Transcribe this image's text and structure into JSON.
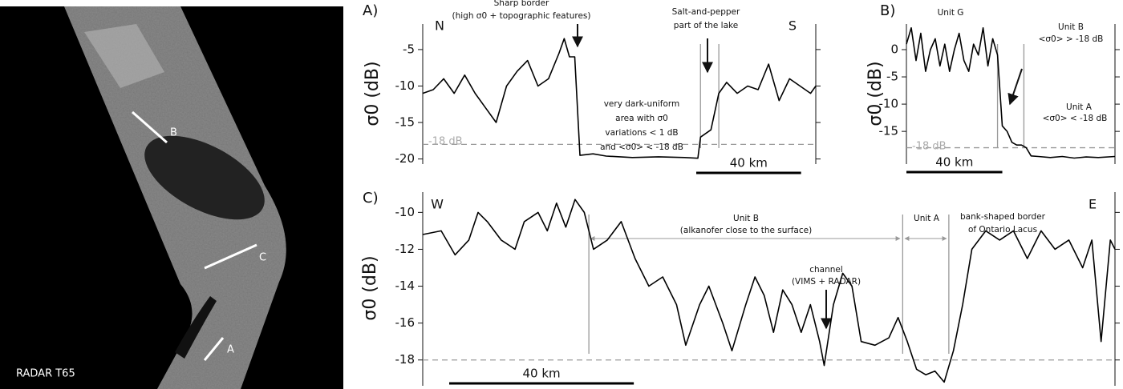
{
  "image": {
    "caption": "RADAR T65",
    "profile_labels": [
      "B",
      "C",
      "A"
    ]
  },
  "chart_data": [
    {
      "type": "line",
      "panel": "A)",
      "y_label": "σ0 (dB)",
      "color": "#000000",
      "x": [
        0,
        4,
        8,
        12,
        16,
        20,
        24,
        28,
        32,
        36,
        40,
        44,
        48,
        52,
        54,
        56,
        58,
        60,
        65,
        70,
        80,
        90,
        100,
        105,
        106,
        110,
        113,
        116,
        120,
        124,
        128,
        132,
        136,
        140,
        144,
        148,
        150
      ],
      "values": [
        -11,
        -10.5,
        -9,
        -11,
        -8.5,
        -11,
        -13,
        -15,
        -10,
        -8,
        -6.5,
        -10,
        -9,
        -5.5,
        -3.5,
        -6,
        -6,
        -19.5,
        -19.3,
        -19.6,
        -19.8,
        -19.7,
        -19.8,
        -19.9,
        -17,
        -16,
        -11,
        -9.5,
        -11,
        -10,
        -10.5,
        -7,
        -12,
        -9,
        -10,
        -11,
        -10
      ],
      "xlim": [
        0,
        150
      ],
      "ylim": [
        -20.7,
        -1.5
      ],
      "yticks": [
        -5,
        -10,
        -15,
        -20
      ],
      "hlines": [
        {
          "value": -18,
          "label": "-18 dB"
        }
      ],
      "vlines": [
        106,
        113
      ],
      "scale_bar": {
        "length": 40,
        "label": "40 km"
      },
      "annotations": [
        "Sharp border",
        "(high σ0 + topographic features)",
        "Salt-and-pepper",
        "part of the lake",
        "very dark-uniform",
        "area with σ0",
        "variations < 1 dB",
        "and <σ0> < -18 dB",
        "N",
        "S"
      ]
    },
    {
      "type": "line",
      "panel": "B)",
      "y_label": "σ0 (dB)",
      "color": "#000000",
      "x": [
        0,
        2,
        4,
        6,
        8,
        10,
        12,
        14,
        16,
        18,
        20,
        22,
        24,
        26,
        28,
        30,
        32,
        34,
        36,
        38,
        40,
        42,
        44,
        46,
        48,
        50,
        52,
        55,
        60,
        65,
        70,
        75,
        80,
        87
      ],
      "values": [
        1,
        4,
        -2,
        3,
        -4,
        0,
        2,
        -3,
        1,
        -4,
        0,
        3,
        -2,
        -4,
        1,
        -1,
        4,
        -3,
        2,
        -1,
        -14,
        -15,
        -17,
        -17.5,
        -17.5,
        -18,
        -19.5,
        -19.6,
        -19.8,
        -19.6,
        -19.9,
        -19.7,
        -19.8,
        -19.6
      ],
      "xlim": [
        0,
        87
      ],
      "ylim": [
        -21,
        4.7
      ],
      "yticks": [
        0,
        -5,
        -10,
        -15
      ],
      "hlines": [
        {
          "value": -18,
          "label": "-18 dB"
        }
      ],
      "vlines": [
        38,
        49
      ],
      "scale_bar": {
        "length": 40,
        "label": "40 km"
      },
      "annotations": [
        "Unit G",
        "Unit B",
        "<σ0> > -18 dB",
        "Unit A",
        "<σ0> < -18 dB"
      ]
    },
    {
      "type": "line",
      "panel": "C)",
      "y_label": "σ0 (dB)",
      "color": "#000000",
      "x": [
        0,
        4,
        7,
        10,
        12,
        14,
        17,
        20,
        22,
        25,
        27,
        29,
        31,
        33,
        35,
        37,
        40,
        43,
        46,
        49,
        52,
        55,
        57,
        60,
        62,
        65,
        67,
        70,
        72,
        74,
        76,
        78,
        80,
        82,
        84,
        86,
        87,
        89,
        91,
        93,
        95,
        98,
        101,
        103,
        105,
        107,
        109,
        111,
        113,
        115,
        117,
        119,
        122,
        125,
        128,
        131,
        134,
        137,
        140,
        143,
        145,
        147,
        149,
        150
      ],
      "values": [
        -11.2,
        -11,
        -12.3,
        -11.5,
        -10,
        -10.5,
        -11.5,
        -12,
        -10.5,
        -10,
        -11,
        -9.5,
        -10.8,
        -9.3,
        -10,
        -12,
        -11.5,
        -10.5,
        -12.5,
        -14,
        -13.5,
        -15,
        -17.2,
        -15,
        -14,
        -16,
        -17.5,
        -15,
        -13.5,
        -14.5,
        -16.5,
        -14.2,
        -15,
        -16.5,
        -15,
        -17,
        -18.3,
        -15,
        -13.3,
        -14,
        -17,
        -17.2,
        -16.8,
        -15.7,
        -17,
        -18.5,
        -18.8,
        -18.6,
        -19.2,
        -17.5,
        -15,
        -12,
        -11,
        -11.5,
        -11,
        -12.5,
        -11,
        -12,
        -11.5,
        -13,
        -11.5,
        -17,
        -11.5,
        -12
      ],
      "xlim": [
        0,
        150
      ],
      "ylim": [
        -19.4,
        -8.9
      ],
      "yticks": [
        -10,
        -12,
        -14,
        -16,
        -18
      ],
      "hlines": [
        {
          "value": -18
        }
      ],
      "vlines": [
        36,
        104,
        114
      ],
      "scale_bar": {
        "length": 40,
        "label": "40 km"
      },
      "annotations": [
        "Unit B",
        "(alkanofer close to the surface)",
        "Unit A",
        "bank-shaped border",
        "of Ontario Lacus",
        "channel",
        "(VIMS + RADAR)",
        "W",
        "E"
      ]
    }
  ]
}
